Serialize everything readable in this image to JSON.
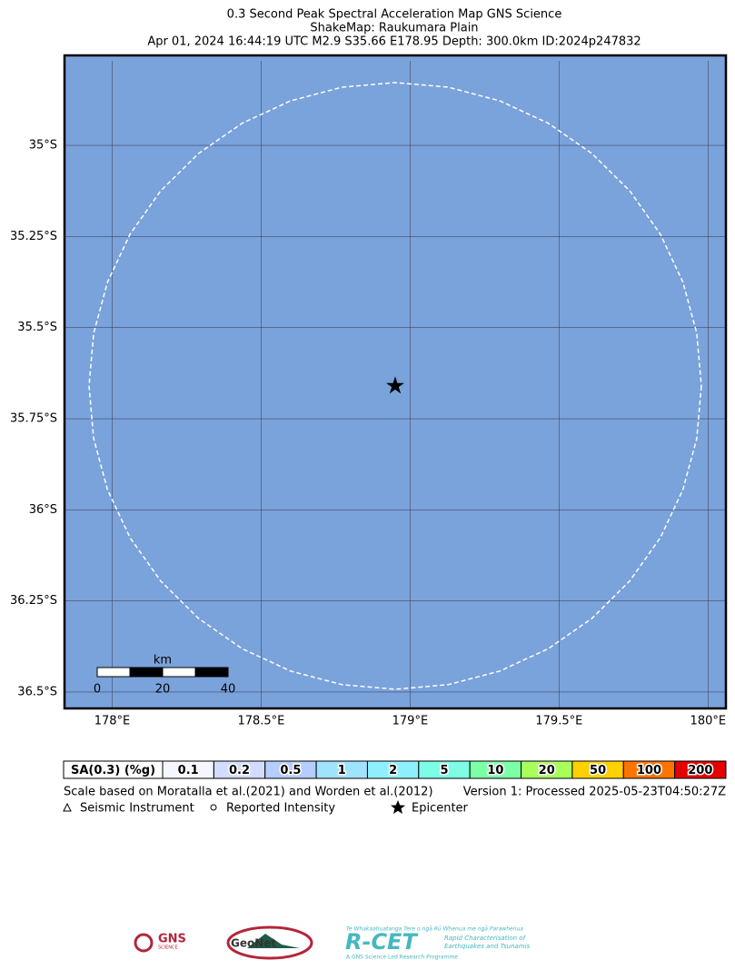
{
  "title": [
    "0.3 Second Peak Spectral Acceleration Map GNS Science",
    "ShakeMap: Raukumara Plain",
    "Apr 01, 2024 16:44:19 UTC M2.9 S35.66 E178.95 Depth: 300.0km ID:2024p247832"
  ],
  "map": {
    "xlim": [
      177.84,
      180.06
    ],
    "ylim": [
      -36.545,
      -34.753
    ],
    "xticks": [
      {
        "value": 178,
        "label": "178°E"
      },
      {
        "value": 178.5,
        "label": "178.5°E"
      },
      {
        "value": 179,
        "label": "179°E"
      },
      {
        "value": 179.5,
        "label": "179.5°E"
      },
      {
        "value": 180,
        "label": "180°E"
      }
    ],
    "yticks": [
      {
        "value": -35,
        "label": "35°S"
      },
      {
        "value": -35.25,
        "label": "35.25°S"
      },
      {
        "value": -35.5,
        "label": "35.5°S"
      },
      {
        "value": -35.75,
        "label": "35.75°S"
      },
      {
        "value": -36,
        "label": "36°S"
      },
      {
        "value": -36.25,
        "label": "36.25°S"
      },
      {
        "value": -36.5,
        "label": "36.5°S"
      }
    ],
    "water_color": "#7aa2db",
    "epicenter": {
      "lon": 178.95,
      "lat": -35.66
    },
    "scale_bar": {
      "unit": "km",
      "labels": [
        "0",
        "20",
        "40"
      ]
    }
  },
  "legend": {
    "label": "SA(0.3) (%g)",
    "bins": [
      {
        "label": "0.1",
        "color": "#f5f7ff"
      },
      {
        "label": "0.2",
        "color": "#d3dcff"
      },
      {
        "label": "0.5",
        "color": "#b5cdff"
      },
      {
        "label": "1",
        "color": "#a0e3ff"
      },
      {
        "label": "2",
        "color": "#8ef0ff"
      },
      {
        "label": "5",
        "color": "#7dfde6"
      },
      {
        "label": "10",
        "color": "#7dffa6"
      },
      {
        "label": "20",
        "color": "#a8ff5c"
      },
      {
        "label": "50",
        "color": "#ffd000"
      },
      {
        "label": "100",
        "color": "#ff7400"
      },
      {
        "label": "200",
        "color": "#e40000"
      }
    ]
  },
  "notes": {
    "scale": "Scale based on Moratalla et al.(2021) and Worden et al.(2012)",
    "version": "Version 1: Processed 2025-05-23T04:50:27Z"
  },
  "symbols": [
    "Seismic Instrument",
    "Reported Intensity",
    "Epicenter"
  ],
  "logos": {
    "gns": "GNS",
    "gns_sub": "SCIENCE",
    "geonet": "GeoNet",
    "rcet_top": "Te Whakaahuatanga Tere o ngā Rū Whenua me ngā Parawhenua",
    "rcet": "R-CET",
    "rcet_desc1": "Rapid Characterisation of",
    "rcet_desc2": "Earthquakes and Tsunamis",
    "rcet_bottom": "A GNS Science Led Research Programme"
  }
}
